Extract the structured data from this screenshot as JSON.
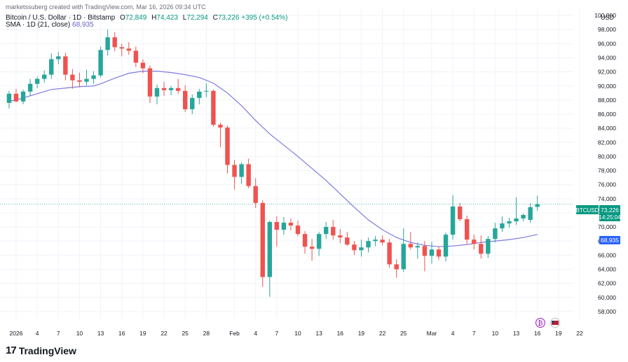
{
  "watermark": "marketssuberg created with TradingView.com, Mar 16, 2026 09:34 UTC",
  "legend": {
    "symbol": "Bitcoin / U.S. Dollar · 1D · Bitstamp",
    "open_label": "O",
    "open": "72,849",
    "high_label": "H",
    "high": "74,423",
    "low_label": "L",
    "low": "72,294",
    "close_label": "C",
    "close": "73,226",
    "change": "+395 (+0.54%)",
    "sma_label": "SMA · 1D (21, close)",
    "sma_value": "68,935"
  },
  "currency": "USD",
  "price_tag": {
    "symbol": "BTCUSD",
    "price": "73,226",
    "countdown": "14:25:04",
    "sma": "68,935"
  },
  "brand": {
    "logo": "17",
    "name": "TradingView"
  },
  "colors": {
    "up": "#26a69a",
    "down": "#ef5350",
    "sma": "#7e7ae0",
    "tag": "#089981",
    "sma_tag": "#2962ff"
  },
  "chart_data": {
    "type": "candlestick",
    "ylim": [
      57000,
      101000
    ],
    "y_ticks": [
      58000,
      60000,
      62000,
      64000,
      66000,
      68000,
      70000,
      72000,
      74000,
      76000,
      78000,
      80000,
      82000,
      84000,
      86000,
      88000,
      90000,
      92000,
      94000,
      96000,
      98000,
      100000
    ],
    "x_labels": [
      {
        "day": 0,
        "label": "2026"
      },
      {
        "day": 3,
        "label": "4"
      },
      {
        "day": 6,
        "label": "7"
      },
      {
        "day": 9,
        "label": "10"
      },
      {
        "day": 12,
        "label": "13"
      },
      {
        "day": 15,
        "label": "16"
      },
      {
        "day": 18,
        "label": "19"
      },
      {
        "day": 21,
        "label": "22"
      },
      {
        "day": 24,
        "label": "25"
      },
      {
        "day": 27,
        "label": "28"
      },
      {
        "day": 31,
        "label": "Feb"
      },
      {
        "day": 34,
        "label": "4"
      },
      {
        "day": 37,
        "label": "7"
      },
      {
        "day": 40,
        "label": "10"
      },
      {
        "day": 43,
        "label": "13"
      },
      {
        "day": 46,
        "label": "16"
      },
      {
        "day": 49,
        "label": "19"
      },
      {
        "day": 52,
        "label": "22"
      },
      {
        "day": 55,
        "label": "25"
      },
      {
        "day": 59,
        "label": "Mar"
      },
      {
        "day": 62,
        "label": "4"
      },
      {
        "day": 65,
        "label": "7"
      },
      {
        "day": 68,
        "label": "10"
      },
      {
        "day": 71,
        "label": "13"
      },
      {
        "day": 74,
        "label": "16"
      },
      {
        "day": 77,
        "label": "19"
      },
      {
        "day": 80,
        "label": "22"
      }
    ],
    "candles": [
      {
        "day": -1,
        "o": 87600,
        "h": 89300,
        "l": 86800,
        "c": 88900
      },
      {
        "day": 0,
        "o": 88900,
        "h": 89600,
        "l": 87700,
        "c": 87800
      },
      {
        "day": 1,
        "o": 87800,
        "h": 89500,
        "l": 87400,
        "c": 89200
      },
      {
        "day": 2,
        "o": 89200,
        "h": 91000,
        "l": 88600,
        "c": 90300
      },
      {
        "day": 3,
        "o": 90300,
        "h": 91300,
        "l": 89700,
        "c": 91000
      },
      {
        "day": 4,
        "o": 91000,
        "h": 92200,
        "l": 90500,
        "c": 91600
      },
      {
        "day": 5,
        "o": 91600,
        "h": 94600,
        "l": 91000,
        "c": 93800
      },
      {
        "day": 6,
        "o": 93800,
        "h": 94800,
        "l": 93100,
        "c": 94200
      },
      {
        "day": 7,
        "o": 94200,
        "h": 94700,
        "l": 90800,
        "c": 91600
      },
      {
        "day": 8,
        "o": 91600,
        "h": 92400,
        "l": 89600,
        "c": 90800
      },
      {
        "day": 9,
        "o": 90800,
        "h": 91900,
        "l": 89800,
        "c": 90600
      },
      {
        "day": 10,
        "o": 90600,
        "h": 92300,
        "l": 90100,
        "c": 91000
      },
      {
        "day": 11,
        "o": 91000,
        "h": 92100,
        "l": 90300,
        "c": 91500
      },
      {
        "day": 12,
        "o": 91500,
        "h": 95600,
        "l": 91200,
        "c": 95100
      },
      {
        "day": 13,
        "o": 95100,
        "h": 98000,
        "l": 94300,
        "c": 96900
      },
      {
        "day": 14,
        "o": 96900,
        "h": 97600,
        "l": 94900,
        "c": 95500
      },
      {
        "day": 15,
        "o": 95500,
        "h": 96000,
        "l": 94200,
        "c": 95300
      },
      {
        "day": 16,
        "o": 95300,
        "h": 96200,
        "l": 94400,
        "c": 95000
      },
      {
        "day": 17,
        "o": 95000,
        "h": 95600,
        "l": 92700,
        "c": 93300
      },
      {
        "day": 18,
        "o": 93300,
        "h": 93800,
        "l": 91800,
        "c": 92500
      },
      {
        "day": 19,
        "o": 92500,
        "h": 92900,
        "l": 87600,
        "c": 88500
      },
      {
        "day": 20,
        "o": 88500,
        "h": 90200,
        "l": 87400,
        "c": 89700
      },
      {
        "day": 21,
        "o": 89700,
        "h": 90600,
        "l": 88600,
        "c": 89400
      },
      {
        "day": 22,
        "o": 89400,
        "h": 90000,
        "l": 88700,
        "c": 89700
      },
      {
        "day": 23,
        "o": 89700,
        "h": 91000,
        "l": 88900,
        "c": 89300
      },
      {
        "day": 24,
        "o": 89300,
        "h": 90100,
        "l": 86300,
        "c": 86700
      },
      {
        "day": 25,
        "o": 86700,
        "h": 88800,
        "l": 86000,
        "c": 88300
      },
      {
        "day": 26,
        "o": 88300,
        "h": 89600,
        "l": 87400,
        "c": 89200
      },
      {
        "day": 27,
        "o": 89200,
        "h": 90400,
        "l": 88400,
        "c": 89300
      },
      {
        "day": 28,
        "o": 89300,
        "h": 89500,
        "l": 84200,
        "c": 84500
      },
      {
        "day": 29,
        "o": 84500,
        "h": 84800,
        "l": 81300,
        "c": 84100
      },
      {
        "day": 30,
        "o": 84100,
        "h": 84400,
        "l": 77600,
        "c": 78800
      },
      {
        "day": 31,
        "o": 78800,
        "h": 79500,
        "l": 75300,
        "c": 77100
      },
      {
        "day": 32,
        "o": 77100,
        "h": 79200,
        "l": 76100,
        "c": 78900
      },
      {
        "day": 33,
        "o": 78900,
        "h": 79700,
        "l": 75500,
        "c": 75800
      },
      {
        "day": 34,
        "o": 75800,
        "h": 76900,
        "l": 72700,
        "c": 73400
      },
      {
        "day": 35,
        "o": 73400,
        "h": 73800,
        "l": 61500,
        "c": 62900
      },
      {
        "day": 36,
        "o": 62900,
        "h": 70900,
        "l": 60100,
        "c": 70700
      },
      {
        "day": 37,
        "o": 70700,
        "h": 71500,
        "l": 67200,
        "c": 69600
      },
      {
        "day": 38,
        "o": 69600,
        "h": 71400,
        "l": 68900,
        "c": 70600
      },
      {
        "day": 39,
        "o": 70600,
        "h": 71200,
        "l": 69500,
        "c": 70200
      },
      {
        "day": 40,
        "o": 70200,
        "h": 70900,
        "l": 68700,
        "c": 69000
      },
      {
        "day": 41,
        "o": 69000,
        "h": 69400,
        "l": 66200,
        "c": 67200
      },
      {
        "day": 42,
        "o": 67200,
        "h": 68300,
        "l": 65200,
        "c": 66900
      },
      {
        "day": 43,
        "o": 66900,
        "h": 69300,
        "l": 65900,
        "c": 69000
      },
      {
        "day": 44,
        "o": 69000,
        "h": 70700,
        "l": 68300,
        "c": 70000
      },
      {
        "day": 45,
        "o": 70000,
        "h": 71000,
        "l": 68200,
        "c": 68800
      },
      {
        "day": 46,
        "o": 68800,
        "h": 69700,
        "l": 67700,
        "c": 68500
      },
      {
        "day": 47,
        "o": 68500,
        "h": 69300,
        "l": 67300,
        "c": 67500
      },
      {
        "day": 48,
        "o": 67500,
        "h": 68000,
        "l": 66000,
        "c": 66700
      },
      {
        "day": 49,
        "o": 66700,
        "h": 68200,
        "l": 65800,
        "c": 67100
      },
      {
        "day": 50,
        "o": 67100,
        "h": 68500,
        "l": 66400,
        "c": 68000
      },
      {
        "day": 51,
        "o": 68000,
        "h": 68700,
        "l": 67300,
        "c": 68200
      },
      {
        "day": 52,
        "o": 68200,
        "h": 68800,
        "l": 67400,
        "c": 67800
      },
      {
        "day": 53,
        "o": 67800,
        "h": 68300,
        "l": 64200,
        "c": 64700
      },
      {
        "day": 54,
        "o": 64700,
        "h": 65400,
        "l": 62800,
        "c": 64000
      },
      {
        "day": 55,
        "o": 64000,
        "h": 69800,
        "l": 63600,
        "c": 67600
      },
      {
        "day": 56,
        "o": 67600,
        "h": 69300,
        "l": 66800,
        "c": 67100
      },
      {
        "day": 57,
        "o": 67100,
        "h": 67800,
        "l": 65500,
        "c": 67300
      },
      {
        "day": 58,
        "o": 67300,
        "h": 68000,
        "l": 63700,
        "c": 65900
      },
      {
        "day": 59,
        "o": 65900,
        "h": 67900,
        "l": 64800,
        "c": 66800
      },
      {
        "day": 60,
        "o": 66800,
        "h": 67200,
        "l": 65300,
        "c": 65800
      },
      {
        "day": 61,
        "o": 65800,
        "h": 69200,
        "l": 65100,
        "c": 68900
      },
      {
        "day": 62,
        "o": 68900,
        "h": 74500,
        "l": 68200,
        "c": 72900
      },
      {
        "day": 63,
        "o": 72900,
        "h": 73400,
        "l": 70800,
        "c": 71100
      },
      {
        "day": 64,
        "o": 71100,
        "h": 71600,
        "l": 67600,
        "c": 68200
      },
      {
        "day": 65,
        "o": 68200,
        "h": 68900,
        "l": 66800,
        "c": 67600
      },
      {
        "day": 66,
        "o": 67600,
        "h": 68800,
        "l": 65500,
        "c": 66200
      },
      {
        "day": 67,
        "o": 66200,
        "h": 68700,
        "l": 65600,
        "c": 68300
      },
      {
        "day": 68,
        "o": 68300,
        "h": 70600,
        "l": 67800,
        "c": 69800
      },
      {
        "day": 69,
        "o": 69800,
        "h": 71500,
        "l": 69300,
        "c": 70500
      },
      {
        "day": 70,
        "o": 70500,
        "h": 71300,
        "l": 69900,
        "c": 70800
      },
      {
        "day": 71,
        "o": 70800,
        "h": 74200,
        "l": 70300,
        "c": 71200
      },
      {
        "day": 72,
        "o": 71200,
        "h": 71900,
        "l": 70800,
        "c": 71700
      },
      {
        "day": 73,
        "o": 71000,
        "h": 73400,
        "l": 70600,
        "c": 72800
      },
      {
        "day": 74,
        "o": 72849,
        "h": 74423,
        "l": 72294,
        "c": 73226
      }
    ],
    "sma": [
      [
        -1,
        87800
      ],
      [
        1,
        88300
      ],
      [
        3,
        88900
      ],
      [
        5,
        89500
      ],
      [
        7,
        89700
      ],
      [
        9,
        89900
      ],
      [
        11,
        90000
      ],
      [
        12,
        90300
      ],
      [
        14,
        91100
      ],
      [
        16,
        91800
      ],
      [
        18,
        92100
      ],
      [
        20,
        92100
      ],
      [
        22,
        91900
      ],
      [
        24,
        91600
      ],
      [
        26,
        91200
      ],
      [
        28,
        90400
      ],
      [
        30,
        89000
      ],
      [
        32,
        87200
      ],
      [
        34,
        85100
      ],
      [
        36,
        83200
      ],
      [
        38,
        81600
      ],
      [
        40,
        80000
      ],
      [
        42,
        78300
      ],
      [
        44,
        76600
      ],
      [
        46,
        74700
      ],
      [
        48,
        72800
      ],
      [
        50,
        71000
      ],
      [
        52,
        69600
      ],
      [
        54,
        68500
      ],
      [
        56,
        67800
      ],
      [
        58,
        67400
      ],
      [
        60,
        67200
      ],
      [
        62,
        67300
      ],
      [
        64,
        67500
      ],
      [
        66,
        67800
      ],
      [
        68,
        68000
      ],
      [
        70,
        68200
      ],
      [
        72,
        68500
      ],
      [
        74,
        68935
      ]
    ],
    "last_price": 73226
  }
}
